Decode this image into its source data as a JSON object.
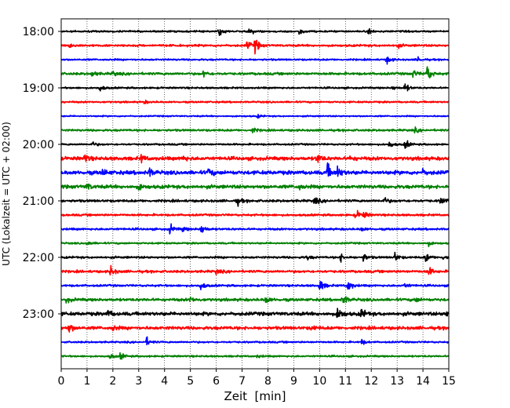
{
  "chart_data": {
    "type": "line",
    "title": "",
    "xlabel": "Zeit  [min]",
    "ylabel": "UTC (Lokalzeit = UTC + 02:00)",
    "xlim": [
      0,
      15
    ],
    "x_ticks": [
      0,
      1,
      2,
      3,
      4,
      5,
      6,
      7,
      8,
      9,
      10,
      11,
      12,
      13,
      14,
      15
    ],
    "y_tick_labels": [
      "18:00",
      "19:00",
      "20:00",
      "21:00",
      "22:00",
      "23:00"
    ],
    "y_tick_rows": [
      0,
      4,
      8,
      12,
      16,
      20
    ],
    "grid": "vertical dotted at each minute",
    "legend": "none",
    "row_minutes": 15,
    "color_cycle": [
      "#000000",
      "#ff0000",
      "#0000ff",
      "#008000"
    ],
    "series": [
      {
        "start": "18:00",
        "baseline": 0.1,
        "events": [
          [
            6.1,
            0.55
          ],
          [
            7.3,
            0.55
          ],
          [
            9.2,
            0.45
          ],
          [
            11.9,
            0.35
          ]
        ]
      },
      {
        "start": "18:15",
        "baseline": 0.12,
        "events": [
          [
            0.3,
            0.3
          ],
          [
            7.2,
            0.6
          ],
          [
            7.5,
            0.9
          ],
          [
            13.0,
            0.25
          ]
        ]
      },
      {
        "start": "18:30",
        "baseline": 0.1,
        "events": [
          [
            12.6,
            0.5
          ],
          [
            13.8,
            0.3
          ]
        ]
      },
      {
        "start": "18:45",
        "baseline": 0.14,
        "events": [
          [
            1.2,
            0.4
          ],
          [
            2.0,
            0.3
          ],
          [
            5.5,
            0.4
          ],
          [
            13.6,
            0.5
          ],
          [
            14.15,
            1.2
          ]
        ]
      },
      {
        "start": "19:00",
        "baseline": 0.1,
        "events": [
          [
            1.5,
            0.4
          ],
          [
            12.8,
            0.3
          ],
          [
            13.3,
            0.6
          ]
        ]
      },
      {
        "start": "19:15",
        "baseline": 0.1,
        "events": [
          [
            3.2,
            0.2
          ]
        ]
      },
      {
        "start": "19:30",
        "baseline": 0.08,
        "events": [
          [
            7.6,
            0.2
          ]
        ]
      },
      {
        "start": "19:45",
        "baseline": 0.12,
        "events": [
          [
            7.4,
            0.3
          ],
          [
            13.7,
            0.25
          ]
        ]
      },
      {
        "start": "20:00",
        "baseline": 0.1,
        "events": [
          [
            1.2,
            0.3
          ],
          [
            12.7,
            0.4
          ],
          [
            13.3,
            0.6
          ]
        ]
      },
      {
        "start": "20:15",
        "baseline": 0.2,
        "events": [
          [
            0.9,
            0.5
          ],
          [
            3.1,
            0.4
          ],
          [
            4.7,
            0.4
          ],
          [
            9.9,
            0.7
          ],
          [
            11.2,
            0.3
          ]
        ]
      },
      {
        "start": "20:30",
        "baseline": 0.22,
        "events": [
          [
            1.6,
            0.4
          ],
          [
            3.4,
            0.5
          ],
          [
            5.7,
            0.5
          ],
          [
            10.3,
            1.0
          ],
          [
            10.7,
            0.7
          ],
          [
            14.0,
            0.3
          ]
        ]
      },
      {
        "start": "20:45",
        "baseline": 0.2,
        "events": [
          [
            1.0,
            0.4
          ],
          [
            3.0,
            0.4
          ],
          [
            9.2,
            0.3
          ]
        ]
      },
      {
        "start": "21:00",
        "baseline": 0.14,
        "events": [
          [
            6.8,
            0.5
          ],
          [
            9.8,
            0.5
          ],
          [
            12.5,
            0.4
          ],
          [
            14.7,
            0.6
          ]
        ]
      },
      {
        "start": "21:15",
        "baseline": 0.12,
        "events": [
          [
            11.4,
            0.6
          ],
          [
            11.7,
            0.4
          ]
        ]
      },
      {
        "start": "21:30",
        "baseline": 0.12,
        "events": [
          [
            4.2,
            0.6
          ],
          [
            4.7,
            0.3
          ],
          [
            5.4,
            0.7
          ],
          [
            11.6,
            0.3
          ]
        ]
      },
      {
        "start": "21:45",
        "baseline": 0.1,
        "events": [
          [
            1.0,
            0.3
          ],
          [
            14.2,
            0.3
          ]
        ]
      },
      {
        "start": "22:00",
        "baseline": 0.12,
        "events": [
          [
            9.5,
            0.3
          ],
          [
            10.8,
            0.5
          ],
          [
            11.7,
            0.5
          ],
          [
            12.9,
            0.6
          ],
          [
            14.1,
            0.6
          ],
          [
            14.8,
            0.4
          ]
        ]
      },
      {
        "start": "22:15",
        "baseline": 0.14,
        "events": [
          [
            1.9,
            0.7
          ],
          [
            6.0,
            0.3
          ],
          [
            14.2,
            0.6
          ]
        ]
      },
      {
        "start": "22:30",
        "baseline": 0.12,
        "events": [
          [
            5.4,
            0.5
          ],
          [
            10.0,
            0.9
          ],
          [
            11.1,
            0.8
          ],
          [
            13.3,
            0.3
          ]
        ]
      },
      {
        "start": "22:45",
        "baseline": 0.16,
        "events": [
          [
            0.2,
            0.3
          ],
          [
            5.0,
            0.3
          ],
          [
            7.9,
            0.5
          ],
          [
            10.9,
            0.7
          ],
          [
            13.7,
            0.3
          ]
        ]
      },
      {
        "start": "23:00",
        "baseline": 0.2,
        "events": [
          [
            1.8,
            0.4
          ],
          [
            10.7,
            0.9
          ],
          [
            11.6,
            0.6
          ],
          [
            14.9,
            0.5
          ]
        ]
      },
      {
        "start": "23:15",
        "baseline": 0.18,
        "events": [
          [
            0.3,
            0.6
          ],
          [
            2.0,
            0.3
          ],
          [
            9.7,
            0.3
          ]
        ]
      },
      {
        "start": "23:30",
        "baseline": 0.1,
        "events": [
          [
            3.3,
            0.5
          ],
          [
            11.6,
            0.4
          ]
        ]
      },
      {
        "start": "23:45",
        "baseline": 0.1,
        "events": [
          [
            1.9,
            0.3
          ],
          [
            2.3,
            0.4
          ],
          [
            7.6,
            0.2
          ]
        ]
      }
    ]
  }
}
